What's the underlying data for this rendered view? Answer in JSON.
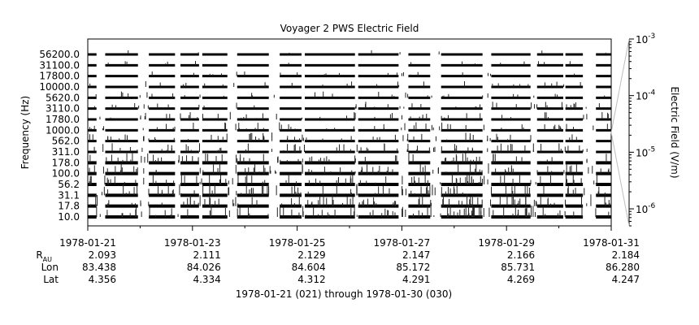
{
  "chart_data": {
    "type": "heatmap",
    "title": "Voyager 2 PWS Electric Field",
    "ylabel": "Frequency (Hz)",
    "colorbar_label": "Electric Field (V/m)",
    "colorbar_scale": "log",
    "colorbar_range": [
      5e-07,
      0.001
    ],
    "colorbar_ticks": [
      {
        "value": 0.001,
        "label": "10",
        "exp": "-3"
      },
      {
        "value": 0.0001,
        "label": "10",
        "exp": "-4"
      },
      {
        "value": 1e-05,
        "label": "10",
        "exp": "-5"
      },
      {
        "value": 1e-06,
        "label": "10",
        "exp": "-6"
      }
    ],
    "channels": [
      "56200.0",
      "31100.0",
      "17800.0",
      "10000.0",
      "5620.0",
      "3110.0",
      "1780.0",
      "1000.0",
      "562.0",
      "311.0",
      "178.0",
      "100.0",
      "56.2",
      "31.1",
      "17.8",
      "10.0"
    ],
    "x_range": [
      "1978-01-21",
      "1978-01-31"
    ],
    "x_ticks": [
      "1978-01-21",
      "1978-01-23",
      "1978-01-25",
      "1978-01-27",
      "1978-01-29",
      "1978-01-31"
    ],
    "ephemeris": {
      "labels": {
        "r": "R",
        "r_sub": "AU",
        "lon": "Lon",
        "lat": "Lat"
      },
      "R": [
        "2.093",
        "2.111",
        "2.129",
        "2.147",
        "2.166",
        "2.184"
      ],
      "Lon": [
        "83.438",
        "84.026",
        "84.604",
        "85.172",
        "85.731",
        "86.280"
      ],
      "Lat": [
        "4.356",
        "4.334",
        "4.312",
        "4.291",
        "4.269",
        "4.247"
      ]
    },
    "data_gaps": [
      [
        "1978-01-21T04:00",
        "1978-01-21T08:00"
      ],
      [
        "1978-01-21T23:00",
        "1978-01-22T04:00"
      ],
      [
        "1978-01-22T16:00",
        "1978-01-22T18:30"
      ],
      [
        "1978-01-23T03:00",
        "1978-01-23T04:30"
      ],
      [
        "1978-01-23T16:00",
        "1978-01-23T20:30"
      ],
      [
        "1978-01-24T11:00",
        "1978-01-24T16:00"
      ],
      [
        "1978-01-25T02:00",
        "1978-01-25T03:30"
      ],
      [
        "1978-01-26T02:30",
        "1978-01-26T04:00"
      ],
      [
        "1978-01-26T22:30",
        "1978-01-27T03:00"
      ],
      [
        "1978-01-27T13:00",
        "1978-01-27T18:00"
      ],
      [
        "1978-01-28T13:00",
        "1978-01-28T17:00"
      ],
      [
        "1978-01-29T11:00",
        "1978-01-29T14:00"
      ],
      [
        "1978-01-30T02:00",
        "1978-01-30T03:00"
      ],
      [
        "1978-01-30T11:00",
        "1978-01-30T17:00"
      ]
    ],
    "grid": true
  },
  "footer": {
    "range_text": "1978-01-21 (021) through 1978-01-30 (030)"
  }
}
